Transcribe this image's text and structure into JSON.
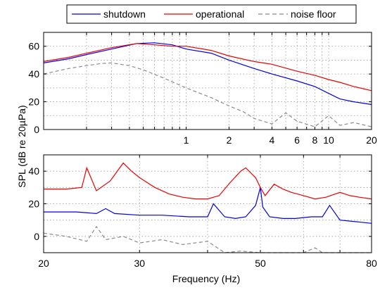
{
  "legend": {
    "items": [
      {
        "label": "shutdown",
        "color": "#0000ee",
        "dash": "solid"
      },
      {
        "label": "operational",
        "color": "#ee0000",
        "dash": "solid"
      },
      {
        "label": "noise floor",
        "color": "#8a8a8a",
        "dash": "dashed"
      }
    ]
  },
  "ylabel": "SPL (dB re 20µPa)",
  "chart_data": [
    {
      "type": "line",
      "xscale": "log",
      "xlim": [
        0.1,
        20
      ],
      "ylim": [
        0,
        70
      ],
      "grid": true,
      "xlabel": "",
      "xticks": [
        1,
        2,
        4,
        6,
        8,
        10,
        20
      ],
      "xtick_labels": [
        "1",
        "2",
        "4",
        "6",
        "8",
        "10",
        "20"
      ],
      "yticks": [
        0,
        20,
        40,
        60
      ],
      "series": [
        {
          "name": "shutdown",
          "color": "#0000ee",
          "x": [
            0.1,
            0.15,
            0.2,
            0.3,
            0.45,
            0.6,
            0.8,
            1,
            1.5,
            2,
            3,
            4,
            6,
            8,
            10,
            12,
            15,
            20
          ],
          "y": [
            48,
            51,
            54,
            58,
            62,
            62.5,
            61,
            58,
            55,
            50,
            44,
            40,
            35,
            31,
            26,
            22,
            20,
            18
          ]
        },
        {
          "name": "operational",
          "color": "#ee0000",
          "x": [
            0.1,
            0.15,
            0.2,
            0.3,
            0.45,
            0.6,
            0.8,
            1,
            1.5,
            2,
            3,
            4,
            6,
            8,
            10,
            12,
            15,
            20
          ],
          "y": [
            49,
            52,
            55,
            59,
            62,
            61,
            60,
            60,
            57,
            53,
            49,
            47,
            42,
            39,
            36,
            34,
            31,
            28
          ]
        },
        {
          "name": "noise floor",
          "color": "#8a8a8a",
          "x": [
            0.1,
            0.15,
            0.2,
            0.25,
            0.3,
            0.4,
            0.5,
            0.7,
            1,
            1.5,
            2,
            2.5,
            3,
            4,
            5,
            6,
            8,
            10,
            12,
            15,
            20
          ],
          "y": [
            40,
            44,
            46,
            47.5,
            48,
            46,
            43,
            37,
            30,
            23,
            17,
            13,
            8,
            4,
            12,
            6,
            2,
            10,
            3,
            5,
            2
          ]
        }
      ]
    },
    {
      "type": "line",
      "xscale": "log",
      "xlim": [
        20,
        80
      ],
      "ylim": [
        -10,
        50
      ],
      "grid": true,
      "xlabel": "Frequency (Hz)",
      "xticks": [
        20,
        30,
        50,
        80
      ],
      "xtick_labels": [
        "20",
        "30",
        "50",
        "80"
      ],
      "yticks": [
        0,
        20,
        40
      ],
      "series": [
        {
          "name": "shutdown",
          "color": "#0000ee",
          "x": [
            20,
            23,
            25,
            26,
            27,
            30,
            33,
            37,
            40,
            41,
            43,
            45,
            47,
            49,
            50,
            50.5,
            52,
            55,
            58,
            62,
            65,
            67,
            70,
            75,
            80
          ],
          "y": [
            15,
            15,
            14,
            17,
            14,
            13,
            13,
            12,
            12,
            20,
            12,
            11,
            12,
            19,
            30,
            18,
            12,
            11,
            11,
            12,
            12,
            19,
            10,
            9,
            8
          ]
        },
        {
          "name": "operational",
          "color": "#ee0000",
          "x": [
            20,
            22,
            23.5,
            24,
            25,
            26.5,
            28,
            29,
            30,
            32,
            34,
            36,
            38,
            40,
            42,
            44,
            46,
            47,
            48,
            49,
            50,
            51,
            53,
            55,
            57,
            60,
            63,
            66,
            70,
            73,
            76,
            80
          ],
          "y": [
            29,
            29,
            30,
            42,
            28,
            34,
            45,
            40,
            36,
            30,
            26,
            24,
            23,
            23,
            25,
            33,
            40,
            42,
            39,
            36,
            30,
            25,
            32,
            29,
            27,
            25,
            23,
            24,
            27,
            25,
            24,
            23
          ]
        },
        {
          "name": "noise floor",
          "color": "#8a8a8a",
          "x": [
            20,
            22,
            24,
            25,
            26,
            28,
            30,
            33,
            36,
            40,
            43,
            46,
            50,
            55,
            60,
            63,
            65,
            70,
            80
          ],
          "y": [
            2,
            0,
            -3,
            6,
            -2,
            0,
            -4,
            -2,
            -5,
            -3,
            -10,
            -9,
            -10,
            -10,
            -10,
            -7,
            -10,
            -10,
            -10
          ]
        }
      ]
    }
  ]
}
